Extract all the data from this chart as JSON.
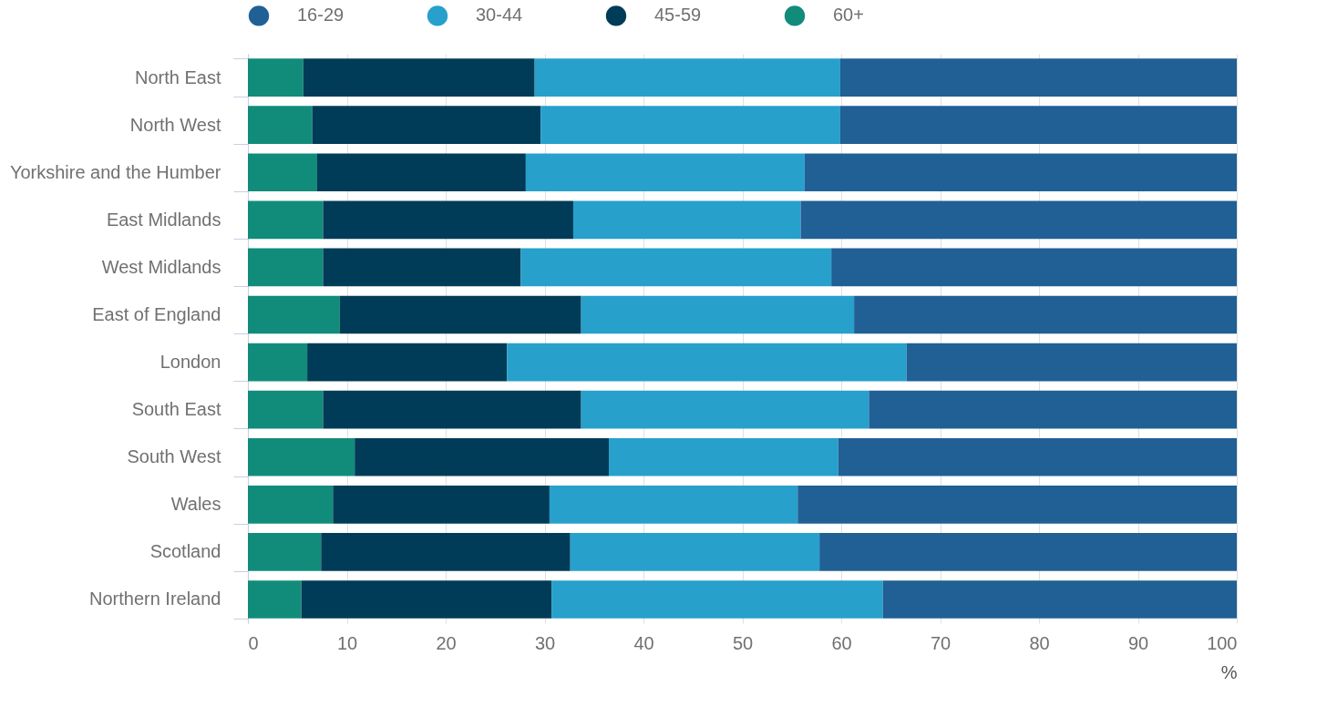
{
  "chart_data": {
    "type": "bar",
    "orientation": "horizontal",
    "stacked": true,
    "xlabel": "%",
    "categories": [
      "North East",
      "North West",
      "Yorkshire and the Humber",
      "East Midlands",
      "West Midlands",
      "East of England",
      "London",
      "South East",
      "South West",
      "Wales",
      "Scotland",
      "Northern Ireland"
    ],
    "series": [
      {
        "name": "60+",
        "color": "#118c7b",
        "values": [
          5.6,
          6.5,
          7.0,
          7.6,
          7.6,
          9.3,
          6.0,
          7.6,
          10.8,
          8.6,
          7.4,
          5.4
        ]
      },
      {
        "name": "45-59",
        "color": "#003c57",
        "values": [
          23.4,
          23.1,
          21.1,
          25.3,
          20.0,
          24.4,
          20.2,
          26.1,
          25.7,
          21.9,
          25.2,
          25.3
        ]
      },
      {
        "name": "30-44",
        "color": "#27a0cc",
        "values": [
          30.9,
          30.3,
          28.2,
          23.0,
          31.4,
          27.6,
          40.4,
          29.1,
          23.2,
          25.1,
          25.2,
          33.5
        ]
      },
      {
        "name": "16-29",
        "color": "#206095",
        "values": [
          40.1,
          40.1,
          43.7,
          44.1,
          41.0,
          38.7,
          33.4,
          37.2,
          40.3,
          44.4,
          42.2,
          35.8
        ]
      }
    ],
    "xlim": [
      0,
      100
    ],
    "xticks": [
      0,
      10,
      20,
      30,
      40,
      50,
      60,
      70,
      80,
      90,
      100
    ],
    "grid": "x",
    "legend": "top"
  }
}
